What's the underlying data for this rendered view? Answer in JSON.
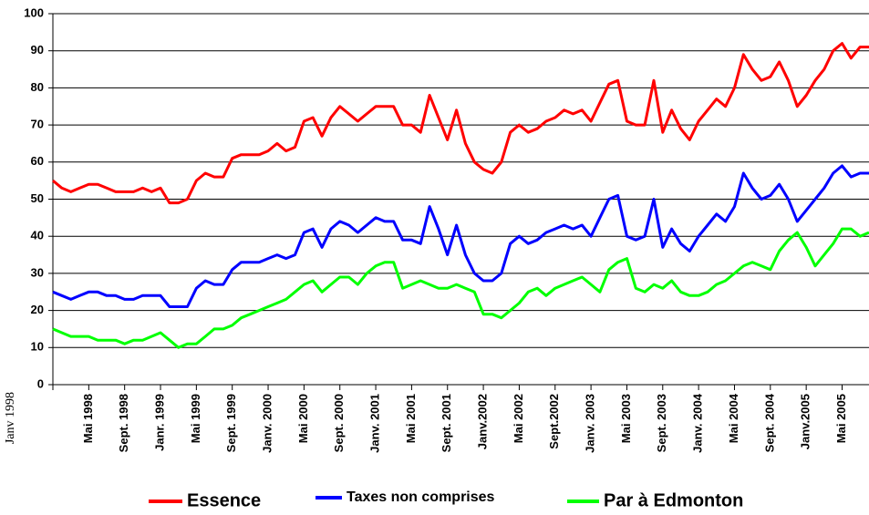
{
  "chart_data": {
    "type": "line",
    "categories": [
      "Janv 1998",
      null,
      null,
      null,
      "Mai 1998",
      null,
      null,
      null,
      "Sept. 1998",
      null,
      null,
      null,
      "Janr. 1999",
      null,
      null,
      null,
      "Mai 1999",
      null,
      null,
      null,
      "Sept. 1999",
      null,
      null,
      null,
      "Janv. 2000",
      null,
      null,
      null,
      "Mai 2000",
      null,
      null,
      null,
      "Sept. 2000",
      null,
      null,
      null,
      "Janv. 2001",
      null,
      null,
      null,
      "Mai 2001",
      null,
      null,
      null,
      "Sept. 2001",
      null,
      null,
      null,
      "Janv.2002",
      null,
      null,
      null,
      "Mai 2002",
      null,
      null,
      null,
      "Sept.2002",
      null,
      null,
      null,
      "Janv. 2003",
      null,
      null,
      null,
      "Mai 2003",
      null,
      null,
      null,
      "Sept. 2003",
      null,
      null,
      null,
      "Janv. 2004",
      null,
      null,
      null,
      "Mai 2004",
      null,
      null,
      null,
      "Sept. 2004",
      null,
      null,
      null,
      "Janv.2005",
      null,
      null,
      null,
      "Mai 2005",
      null,
      null,
      null
    ],
    "series": [
      {
        "name": "Essence",
        "color": "#ff0000",
        "values": [
          55,
          53,
          52,
          53,
          54,
          54,
          53,
          52,
          52,
          52,
          53,
          52,
          53,
          49,
          49,
          50,
          55,
          57,
          56,
          56,
          61,
          62,
          62,
          62,
          63,
          65,
          63,
          64,
          71,
          72,
          67,
          72,
          75,
          73,
          71,
          73,
          75,
          75,
          75,
          70,
          70,
          68,
          78,
          72,
          66,
          74,
          65,
          60,
          58,
          57,
          60,
          68,
          70,
          68,
          69,
          71,
          72,
          74,
          73,
          74,
          71,
          76,
          81,
          82,
          71,
          70,
          70,
          82,
          68,
          74,
          69,
          66,
          71,
          74,
          77,
          75,
          80,
          89,
          85,
          82,
          83,
          87,
          82,
          75,
          78,
          82,
          85,
          90,
          92,
          88,
          91,
          91
        ]
      },
      {
        "name": "Taxes non comprises",
        "color": "#0000ff",
        "values": [
          25,
          24,
          23,
          24,
          25,
          25,
          24,
          24,
          23,
          23,
          24,
          24,
          24,
          21,
          21,
          21,
          26,
          28,
          27,
          27,
          31,
          33,
          33,
          33,
          34,
          35,
          34,
          35,
          41,
          42,
          37,
          42,
          44,
          43,
          41,
          43,
          45,
          44,
          44,
          39,
          39,
          38,
          48,
          42,
          35,
          43,
          35,
          30,
          28,
          28,
          30,
          38,
          40,
          38,
          39,
          41,
          42,
          43,
          42,
          43,
          40,
          45,
          50,
          51,
          40,
          39,
          40,
          50,
          37,
          42,
          38,
          36,
          40,
          43,
          46,
          44,
          48,
          57,
          53,
          50,
          51,
          54,
          50,
          44,
          47,
          50,
          53,
          57,
          59,
          56,
          57,
          57
        ]
      },
      {
        "name": "Par à Edmonton",
        "color": "#00ff00",
        "values": [
          15,
          14,
          13,
          13,
          13,
          12,
          12,
          12,
          11,
          12,
          12,
          13,
          14,
          12,
          10,
          11,
          11,
          13,
          15,
          15,
          16,
          18,
          19,
          20,
          21,
          22,
          23,
          25,
          27,
          28,
          25,
          27,
          29,
          29,
          27,
          30,
          32,
          33,
          33,
          26,
          27,
          28,
          27,
          26,
          26,
          27,
          26,
          25,
          19,
          19,
          18,
          20,
          22,
          25,
          26,
          24,
          26,
          27,
          28,
          29,
          27,
          25,
          31,
          33,
          34,
          26,
          25,
          27,
          26,
          28,
          25,
          24,
          24,
          25,
          27,
          28,
          30,
          32,
          33,
          32,
          31,
          36,
          39,
          41,
          37,
          32,
          35,
          38,
          42,
          42,
          40,
          41
        ]
      }
    ],
    "ylim": [
      0,
      100
    ],
    "yticks": [
      0,
      10,
      20,
      30,
      40,
      50,
      60,
      70,
      80,
      90,
      100
    ],
    "grid": true,
    "legend": "bottom"
  }
}
